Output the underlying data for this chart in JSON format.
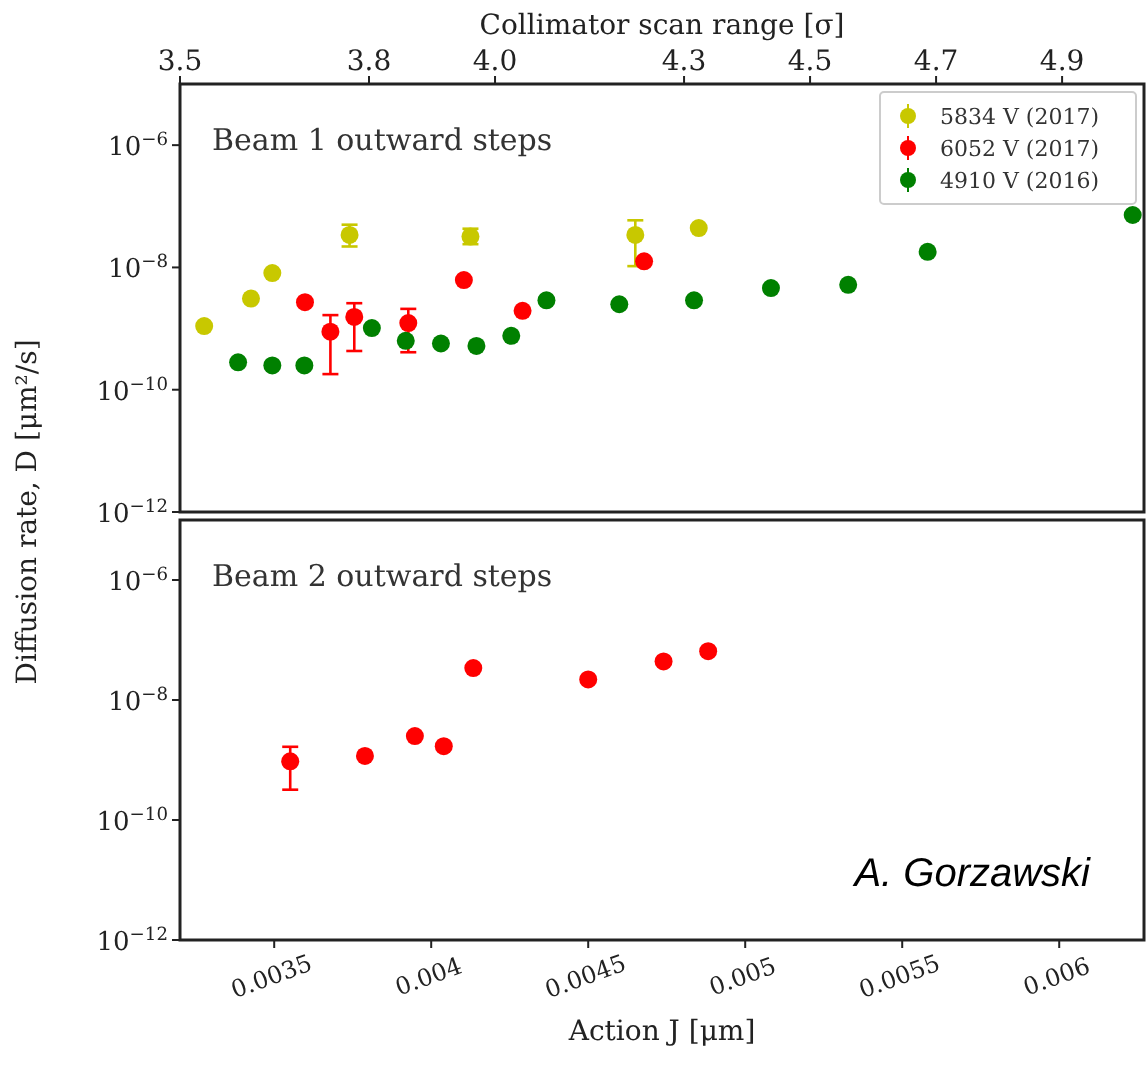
{
  "chart_data": [
    {
      "type": "scatter",
      "x2label": "Collimator scan range [σ]",
      "ylabel": "Diffusion rate, D [μm²/s]",
      "log": "y",
      "xlim": [
        0.0032,
        0.00627
      ],
      "ylim": [
        1e-12,
        1e-05
      ],
      "yticks": [
        {
          "value": 1e-12,
          "label": "10$^{−12}$"
        },
        {
          "value": 1e-10,
          "label": "10$^{−10}$"
        },
        {
          "value": 1e-08,
          "label": "10$^{−8}$"
        },
        {
          "value": 1e-06,
          "label": "10$^{−6}$"
        }
      ],
      "x2lim": [
        3.5,
        5.03
      ],
      "x2ticks": [
        3.5,
        3.8,
        {
          "value": 4.0,
          "label": "4.0"
        },
        4.3,
        4.5,
        4.7,
        4.9
      ],
      "tick_labels": "y",
      "marker": "circle",
      "legend": "top right",
      "grid": false,
      "annotations": [
        "Beam 1 outward steps"
      ],
      "series": [
        {
          "name": "5834 V (2017)",
          "color": "#c8c800",
          "x": [
            0.003277,
            0.003426,
            0.003494,
            0.00374,
            0.004125,
            0.00465,
            0.004852
          ],
          "values": [
            1.1e-09,
            3.1e-09,
            8.1e-09,
            3.4e-08,
            3.2e-08,
            3.4e-08,
            4.4e-08
          ],
          "errors": [
            null,
            null,
            null,
            [
              2.2e-08,
              5e-08
            ],
            [
              2.4e-08,
              4.3e-08
            ],
            [
              1.05e-08,
              5.9e-08
            ],
            null
          ]
        },
        {
          "name": "6052 V (2017)",
          "color": "#ff0000",
          "x": [
            0.003598,
            0.003679,
            0.003755,
            0.003927,
            0.004104,
            0.004291,
            0.004678
          ],
          "values": [
            2.7e-09,
            8.9e-10,
            1.55e-09,
            1.23e-09,
            6.2e-09,
            1.95e-09,
            1.26e-08
          ],
          "errors": [
            null,
            [
              1.8e-10,
              1.66e-09
            ],
            [
              4.3e-10,
              2.6e-09
            ],
            [
              4.1e-10,
              2.1e-09
            ],
            null,
            null,
            null
          ]
        },
        {
          "name": "4910 V (2016)",
          "color": "#008000",
          "x": [
            0.003385,
            0.003494,
            0.003596,
            0.003811,
            0.003919,
            0.004031,
            0.004144,
            0.004255,
            0.004367,
            0.004599,
            0.004837,
            0.005082,
            0.005328,
            0.005581,
            0.006234
          ],
          "values": [
            2.8e-10,
            2.5e-10,
            2.5e-10,
            1.02e-09,
            6.3e-10,
            5.7e-10,
            5.2e-10,
            7.6e-10,
            2.9e-09,
            2.5e-09,
            2.9e-09,
            4.6e-09,
            5.2e-09,
            1.8e-08,
            7.2e-08
          ]
        }
      ]
    },
    {
      "type": "scatter",
      "xlabel": "Action J [μm]",
      "log": "y",
      "xlim": [
        0.0032,
        0.00627
      ],
      "ylim": [
        1e-12,
        1e-05
      ],
      "xticks": [
        0.0035,
        0.004,
        0.0045,
        0.005,
        0.0055,
        0.006
      ],
      "yticks": [
        {
          "value": 1e-12,
          "label": "10$^{−12}$"
        },
        {
          "value": 1e-10,
          "label": "10$^{−10}$"
        },
        {
          "value": 1e-08,
          "label": "10$^{−8}$"
        },
        {
          "value": 1e-06,
          "label": "10$^{−6}$"
        }
      ],
      "marker": "circle",
      "grid": false,
      "annotations": [
        "Beam 2 outward steps",
        "A. Gorzawski"
      ],
      "series": [
        {
          "color": "#ff0000",
          "x": [
            0.003551,
            0.003789,
            0.003948,
            0.00404,
            0.004134,
            0.0045,
            0.00474,
            0.004882
          ],
          "values": [
            9.5e-10,
            1.17e-09,
            2.5e-09,
            1.7e-09,
            3.4e-08,
            2.2e-08,
            4.4e-08,
            6.5e-08
          ],
          "errors": [
            [
              3.2e-10,
              1.66e-09
            ],
            null,
            null,
            null,
            null,
            null,
            null,
            null
          ]
        }
      ]
    }
  ]
}
